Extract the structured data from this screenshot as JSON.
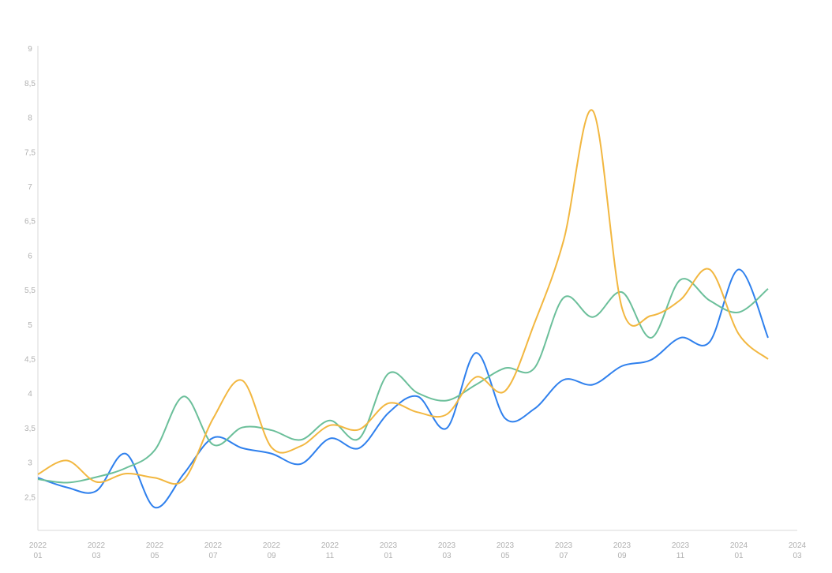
{
  "chart_data": {
    "type": "line",
    "categories": [
      "2022 01",
      null,
      "2022 03",
      null,
      "2022 05",
      null,
      "2022 07",
      null,
      "2022 09",
      null,
      "2022 11",
      null,
      "2023 01",
      null,
      "2023 03",
      null,
      "2023 05",
      null,
      "2023 07",
      null,
      "2023 09",
      null,
      "2023 11",
      null,
      "2024 01",
      null,
      "2024 03"
    ],
    "series": [
      {
        "color": "#2f80ed",
        "values": [
          2.79,
          2.65,
          2.6,
          3.14,
          2.36,
          2.85,
          3.37,
          3.22,
          3.14,
          2.99,
          3.36,
          3.22,
          3.73,
          3.97,
          3.51,
          4.6,
          3.65,
          3.79,
          4.21,
          4.14,
          4.41,
          4.5,
          4.82,
          4.76,
          5.81,
          4.82,
          null
        ]
      },
      {
        "color": "#6bbf9a",
        "values": [
          2.77,
          2.72,
          2.8,
          2.93,
          3.19,
          3.97,
          3.27,
          3.52,
          3.48,
          3.34,
          3.62,
          3.36,
          4.3,
          4.02,
          3.91,
          4.14,
          4.38,
          4.38,
          5.4,
          5.12,
          5.48,
          4.82,
          5.66,
          5.36,
          5.19,
          5.53,
          null
        ]
      },
      {
        "color": "#f2b740",
        "values": [
          2.84,
          3.04,
          2.73,
          2.85,
          2.79,
          2.76,
          3.65,
          4.2,
          3.23,
          3.25,
          3.55,
          3.49,
          3.87,
          3.74,
          3.71,
          4.25,
          4.05,
          5.03,
          6.23,
          8.11,
          5.25,
          5.14,
          5.37,
          5.81,
          4.87,
          4.51,
          null
        ]
      }
    ],
    "ylim": [
      2,
      9
    ],
    "yticks": [
      {
        "value": 2.5,
        "label": "2,5"
      },
      3,
      {
        "value": 3.5,
        "label": "3,5"
      },
      4,
      {
        "value": 4.5,
        "label": "4,5"
      },
      5,
      {
        "value": 5.5,
        "label": "5,5"
      },
      6,
      {
        "value": 6.5,
        "label": "6,5"
      },
      7,
      {
        "value": 7.5,
        "label": "7,5"
      },
      8,
      {
        "value": 8.5,
        "label": "8,5"
      },
      9
    ],
    "grid": false
  }
}
